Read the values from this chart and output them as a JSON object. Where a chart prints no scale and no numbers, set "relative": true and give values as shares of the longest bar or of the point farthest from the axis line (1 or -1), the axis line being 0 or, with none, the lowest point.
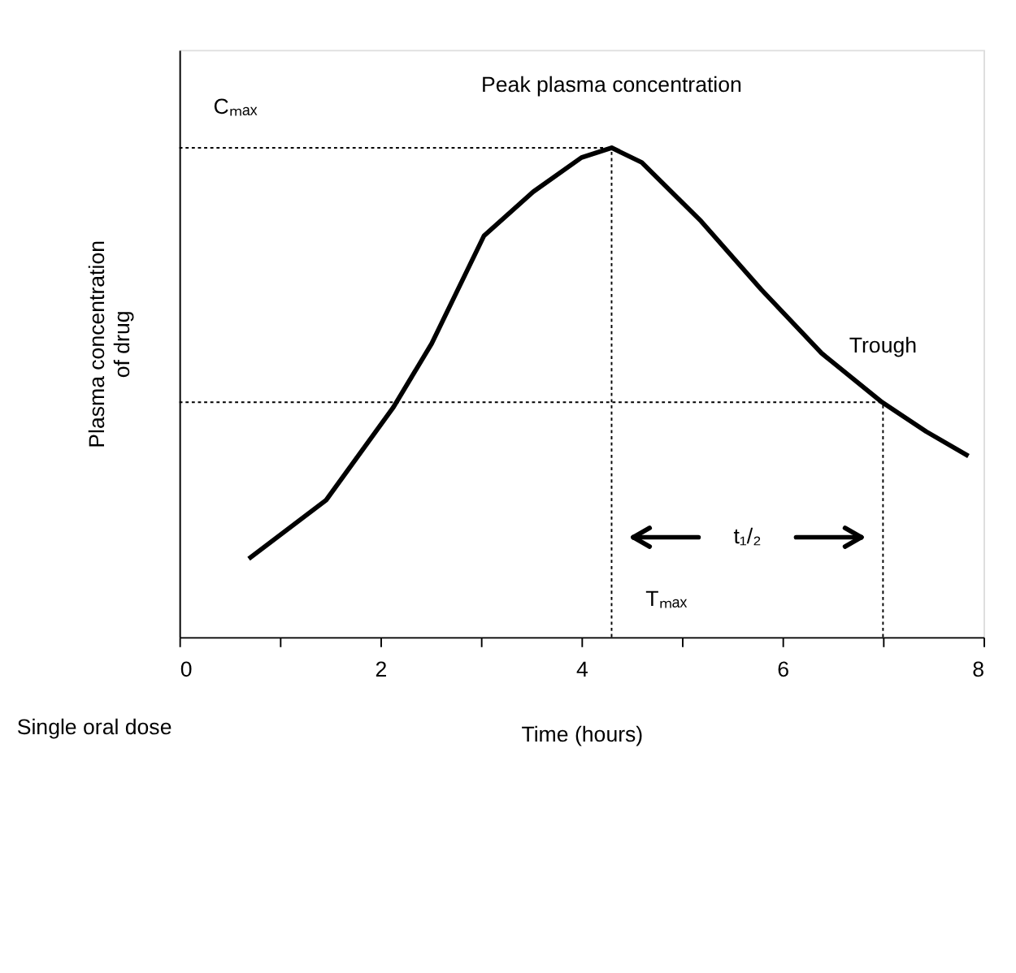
{
  "chart_data": {
    "type": "line",
    "relative": true,
    "xlabel": "Time (hours)",
    "ylabel": "Plasma concentration\nof drug",
    "x": [
      0.69,
      1.46,
      2.13,
      2.51,
      3.03,
      3.52,
      4.0,
      4.3,
      4.6,
      5.19,
      5.79,
      6.39,
      6.99,
      7.43,
      7.85
    ],
    "series": [
      {
        "color": "#000000",
        "values": [
          0.16,
          0.28,
          0.47,
          0.6,
          0.82,
          0.91,
          0.98,
          1.0,
          0.97,
          0.85,
          0.71,
          0.58,
          0.48,
          0.42,
          0.37
        ]
      }
    ],
    "xlim": [
      0,
      8
    ],
    "xticks": [
      0,
      {
        "value": 1,
        "label": null
      },
      2,
      {
        "value": 3,
        "label": null
      },
      4,
      {
        "value": 5,
        "label": null
      },
      6,
      {
        "value": 7,
        "label": null
      },
      8
    ],
    "ref_lines": [
      {
        "axis": "y",
        "value": 1.0,
        "label": "Cₘₐₓ",
        "line_style": "dotted"
      },
      {
        "axis": "y",
        "value": 0.48,
        "line_style": "dotted"
      },
      {
        "axis": "x",
        "value": 4.3,
        "label": "Tₘₐₓ",
        "line_style": "dotted"
      },
      {
        "axis": "x",
        "value": 7.0,
        "line_style": "dotted"
      }
    ],
    "annotations": [
      {
        "text": "Peak plasma concentration",
        "x": 4.3,
        "y": 1.0
      },
      {
        "text": "Trough",
        "x": 7.0,
        "y": 0.48
      },
      "t₁/₂",
      "Single oral dose"
    ],
    "grid": false,
    "marker": "none",
    "line_style": "solid"
  }
}
